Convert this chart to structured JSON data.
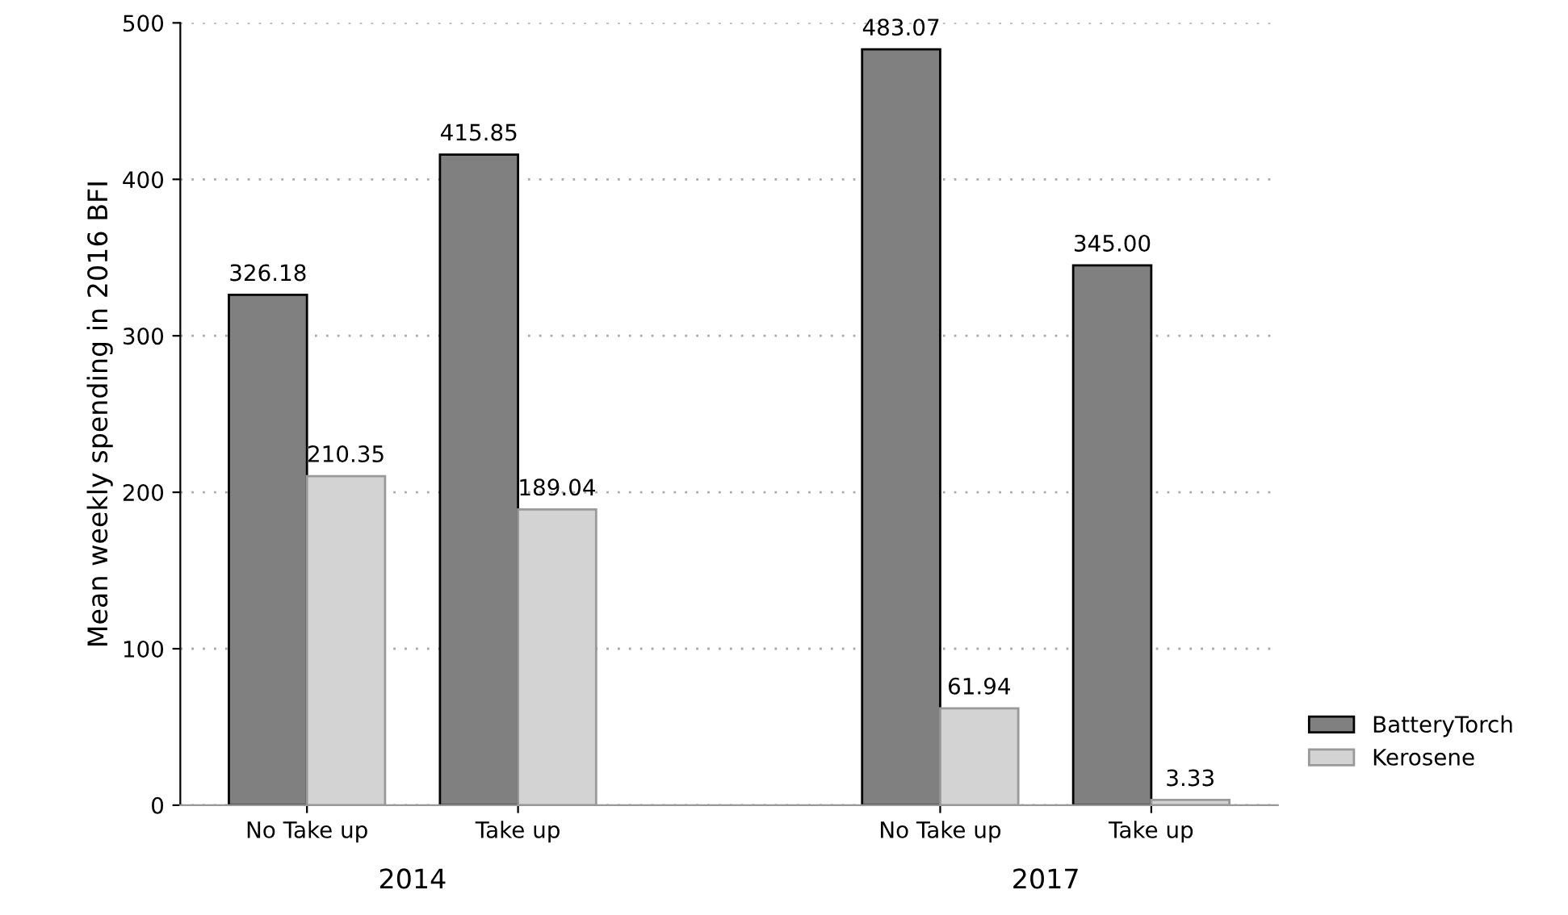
{
  "chart_data": {
    "type": "bar",
    "ylabel": "Mean weekly spending in 2016 BFI",
    "categories": [
      "No Take up",
      "Take up",
      null,
      "No Take up",
      "Take up"
    ],
    "series": [
      {
        "name": "BatteryTorch",
        "color": "#808080",
        "values": [
          326.18,
          415.85,
          null,
          483.07,
          345.0
        ],
        "value_labels": [
          "326.18",
          "415.85",
          null,
          "483.07",
          "345.00"
        ]
      },
      {
        "name": "Kerosene",
        "color": "#d3d3d3",
        "values": [
          210.35,
          189.04,
          null,
          61.94,
          3.33
        ],
        "value_labels": [
          "210.35",
          "189.04",
          null,
          "61.94",
          "3.33"
        ]
      }
    ],
    "annotations": [
      "2014",
      "2017"
    ],
    "ylim": [
      0,
      500
    ],
    "yticks": [
      0,
      100,
      200,
      300,
      400,
      500
    ],
    "grid": "y",
    "legend": "right"
  }
}
